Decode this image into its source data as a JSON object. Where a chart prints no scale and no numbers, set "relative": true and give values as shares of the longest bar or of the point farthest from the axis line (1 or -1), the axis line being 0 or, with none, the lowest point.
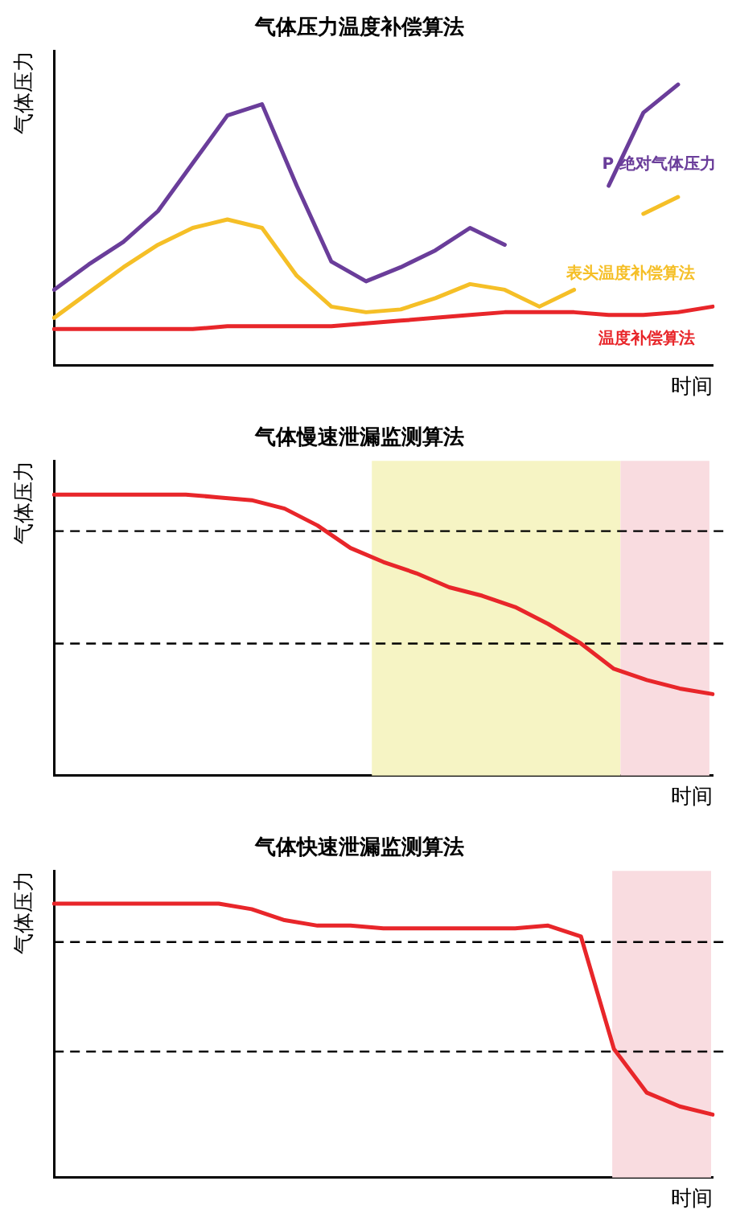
{
  "chart_data": [
    {
      "type": "line",
      "title": "气体压力温度补偿算法",
      "xlabel": "时间",
      "ylabel": "气体压力",
      "relative": true,
      "grid": false,
      "legend": false,
      "tick_labels": false,
      "marker": "none",
      "line_style": "solid",
      "categories": [
        null,
        null,
        null,
        null,
        null,
        null,
        null,
        null,
        null,
        null,
        null,
        null,
        null,
        null,
        null,
        null,
        null,
        null,
        null,
        null
      ],
      "series": [
        {
          "name": "P 绝对气体压力",
          "color": "#6a3d9a",
          "values": [
            0.27,
            0.36,
            0.44,
            0.55,
            0.72,
            0.89,
            0.93,
            0.64,
            0.37,
            0.3,
            0.35,
            0.41,
            0.49,
            0.43,
            null,
            null,
            0.64,
            0.9,
            1,
            null
          ]
        },
        {
          "name": "表头温度补偿算法",
          "color": "#f5bf27",
          "values": [
            0.17,
            0.26,
            0.35,
            0.43,
            0.49,
            0.52,
            0.49,
            0.32,
            0.21,
            0.19,
            0.2,
            0.24,
            0.29,
            0.27,
            0.21,
            0.27,
            null,
            0.54,
            0.6,
            null
          ]
        },
        {
          "name": "温度补偿算法",
          "color": "#e8262a",
          "values": [
            0.13,
            0.13,
            0.13,
            0.13,
            0.13,
            0.14,
            0.14,
            0.14,
            0.14,
            0.15,
            0.16,
            0.17,
            0.18,
            0.19,
            0.19,
            0.19,
            0.18,
            0.18,
            0.19,
            0.21
          ]
        }
      ]
    },
    {
      "type": "line",
      "title": "气体慢速泄漏监测算法",
      "xlabel": "时间",
      "ylabel": "气体压力",
      "relative": true,
      "grid": false,
      "legend": false,
      "tick_labels": false,
      "marker": "none",
      "line_style": "solid",
      "categories": [
        null,
        null,
        null,
        null,
        null,
        null,
        null,
        null,
        null,
        null,
        null,
        null,
        null,
        null,
        null,
        null,
        null,
        null,
        null,
        null,
        null
      ],
      "series": [
        {
          "color": "#e8262a",
          "values": [
            1,
            1,
            1,
            1,
            1,
            0.99,
            0.98,
            0.95,
            0.89,
            0.81,
            0.76,
            0.72,
            0.67,
            0.64,
            0.6,
            0.54,
            0.47,
            0.38,
            0.34,
            0.31,
            0.29
          ]
        }
      ],
      "ref_lines": [
        {
          "axis": "y",
          "value": 0.87,
          "line_style": "dashed",
          "color": "#000000"
        },
        {
          "axis": "y",
          "value": 0.47,
          "line_style": "dashed",
          "color": "#000000"
        }
      ]
    },
    {
      "type": "line",
      "title": "气体快速泄漏监测算法",
      "xlabel": "时间",
      "ylabel": "气体压力",
      "relative": true,
      "grid": false,
      "legend": false,
      "tick_labels": false,
      "marker": "none",
      "line_style": "solid",
      "categories": [
        null,
        null,
        null,
        null,
        null,
        null,
        null,
        null,
        null,
        null,
        null,
        null,
        null,
        null,
        null,
        null,
        null,
        null,
        null,
        null,
        null
      ],
      "series": [
        {
          "color": "#e8262a",
          "values": [
            1,
            1,
            1,
            1,
            1,
            1,
            0.98,
            0.94,
            0.92,
            0.92,
            0.91,
            0.91,
            0.91,
            0.91,
            0.91,
            0.92,
            0.88,
            0.47,
            0.31,
            0.26,
            0.23
          ]
        }
      ],
      "ref_lines": [
        {
          "axis": "y",
          "value": 0.86,
          "line_style": "dashed",
          "color": "#000000"
        },
        {
          "axis": "y",
          "value": 0.46,
          "line_style": "dashed",
          "color": "#000000"
        }
      ]
    }
  ]
}
